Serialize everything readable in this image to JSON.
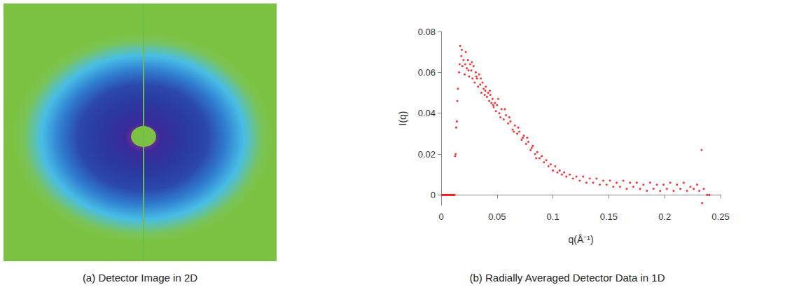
{
  "chart_data": {
    "type": "scatter",
    "title": "(b) Radially Averaged Detector Data in 1D",
    "x_label": "q(Å⁻¹)",
    "y_label": "I(q)",
    "color": "#ff0000",
    "marker": "circle",
    "grid": false,
    "xlim": [
      0,
      0.25
    ],
    "xticks": [
      0,
      0.05,
      0.1,
      0.15,
      0.2,
      0.25
    ],
    "ylim": [
      -0.005,
      0.08
    ],
    "yticks": [
      0,
      0.02,
      0.04,
      0.06,
      0.08
    ],
    "x": [
      0.001,
      0.002,
      0.003,
      0.004,
      0.005,
      0.006,
      0.007,
      0.008,
      0.009,
      0.01,
      0.011,
      0.012,
      0.0125,
      0.013,
      0.0135,
      0.014,
      0.0145,
      0.015,
      0.016,
      0.017,
      0.018,
      0.019,
      0.02,
      0.021,
      0.022,
      0.023,
      0.024,
      0.025,
      0.026,
      0.027,
      0.028,
      0.029,
      0.03,
      0.031,
      0.032,
      0.033,
      0.034,
      0.035,
      0.036,
      0.037,
      0.038,
      0.039,
      0.04,
      0.041,
      0.042,
      0.043,
      0.044,
      0.045,
      0.046,
      0.047,
      0.048,
      0.049,
      0.05,
      0.052,
      0.054,
      0.056,
      0.058,
      0.06,
      0.062,
      0.064,
      0.066,
      0.068,
      0.07,
      0.072,
      0.074,
      0.076,
      0.078,
      0.08,
      0.082,
      0.084,
      0.086,
      0.088,
      0.09,
      0.092,
      0.094,
      0.096,
      0.098,
      0.1,
      0.102,
      0.104,
      0.106,
      0.108,
      0.11,
      0.112,
      0.115,
      0.118,
      0.121,
      0.124,
      0.127,
      0.13,
      0.133,
      0.136,
      0.139,
      0.142,
      0.145,
      0.148,
      0.151,
      0.154,
      0.157,
      0.16,
      0.163,
      0.166,
      0.169,
      0.172,
      0.175,
      0.178,
      0.181,
      0.184,
      0.187,
      0.19,
      0.193,
      0.196,
      0.199,
      0.202,
      0.205,
      0.208,
      0.211,
      0.214,
      0.217,
      0.22,
      0.223,
      0.226,
      0.229,
      0.231,
      0.233,
      0.2335,
      0.235,
      0.238,
      0.24,
      0.051,
      0.053,
      0.057,
      0.061,
      0.065,
      0.069,
      0.073,
      0.077,
      0.081,
      0.085,
      0.0165,
      0.0185,
      0.0215,
      0.0245,
      0.0275,
      0.0315,
      0.0355,
      0.0395,
      0.0435,
      0.0465
    ],
    "values": [
      0,
      0,
      0,
      0,
      0,
      0,
      0,
      0,
      0,
      0,
      0,
      0,
      0.019,
      0.02,
      0.033,
      0.036,
      0.046,
      0.052,
      0.06,
      0.073,
      0.068,
      0.063,
      0.066,
      0.059,
      0.07,
      0.062,
      0.066,
      0.058,
      0.064,
      0.061,
      0.057,
      0.063,
      0.055,
      0.06,
      0.057,
      0.053,
      0.059,
      0.054,
      0.05,
      0.055,
      0.052,
      0.049,
      0.053,
      0.048,
      0.05,
      0.046,
      0.049,
      0.045,
      0.047,
      0.043,
      0.045,
      0.041,
      0.044,
      0.04,
      0.042,
      0.037,
      0.039,
      0.035,
      0.036,
      0.032,
      0.034,
      0.03,
      0.031,
      0.027,
      0.029,
      0.025,
      0.026,
      0.022,
      0.024,
      0.02,
      0.021,
      0.018,
      0.019,
      0.016,
      0.017,
      0.014,
      0.015,
      0.012,
      0.014,
      0.011,
      0.012,
      0.01,
      0.011,
      0.009,
      0.01,
      0.008,
      0.009,
      0.007,
      0.009,
      0.006,
      0.008,
      0.006,
      0.008,
      0.005,
      0.007,
      0.005,
      0.007,
      0.004,
      0.006,
      0.004,
      0.007,
      0.003,
      0.006,
      0.004,
      0.006,
      0.003,
      0.005,
      0.002,
      0.006,
      0.003,
      0.005,
      0.002,
      0.005,
      0.003,
      0.006,
      0.002,
      0.005,
      0.003,
      0.006,
      0.002,
      0.004,
      0.003,
      0.005,
      0.002,
      0.022,
      -0.004,
      0.003,
      0,
      0,
      0.047,
      0.038,
      0.042,
      0.038,
      0.031,
      0.033,
      0.028,
      0.028,
      0.023,
      0.018,
      0.064,
      0.071,
      0.064,
      0.061,
      0.065,
      0.058,
      0.057,
      0.051,
      0.051,
      0.044
    ]
  },
  "image_panel": {
    "caption": "(a) Detector Image in 2D"
  }
}
